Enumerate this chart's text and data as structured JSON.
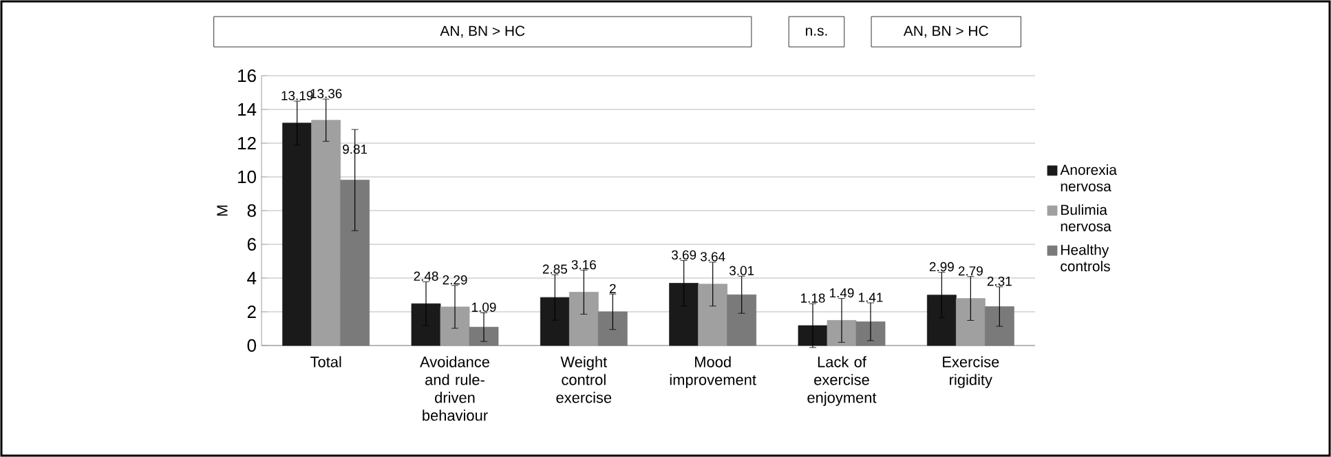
{
  "chart_data": {
    "type": "bar",
    "ylabel": "M",
    "categories": [
      "Total",
      "Avoidance and rule-driven behaviour",
      "Weight control exercise",
      "Mood improvement",
      "Lack of exercise enjoyment",
      "Exercise rigidity"
    ],
    "series": [
      {
        "name": "Anorexia nervosa",
        "color": "#1a1a1a",
        "values": [
          13.19,
          2.48,
          2.85,
          3.69,
          1.18,
          2.99
        ],
        "errors": [
          1.3,
          1.3,
          1.35,
          1.35,
          1.3,
          1.35
        ]
      },
      {
        "name": "Bulimia nervosa",
        "color": "#a0a0a0",
        "values": [
          13.36,
          2.29,
          3.16,
          3.64,
          1.49,
          2.79
        ],
        "errors": [
          1.25,
          1.27,
          1.3,
          1.3,
          1.3,
          1.3
        ]
      },
      {
        "name": "Healthy controls",
        "color": "#7a7a7a",
        "values": [
          9.81,
          1.09,
          2,
          3.01,
          1.41,
          2.31
        ],
        "errors": [
          3.0,
          0.85,
          1.05,
          1.1,
          1.12,
          1.17
        ]
      }
    ],
    "annotations": [
      "AN, BN > HC",
      "n.s.",
      "AN, BN > HC"
    ],
    "ylim": [
      0,
      16
    ],
    "yticks": [
      0,
      2,
      4,
      6,
      8,
      10,
      12,
      14,
      16
    ],
    "grid": "y",
    "legend": "right",
    "data_labels": true
  }
}
